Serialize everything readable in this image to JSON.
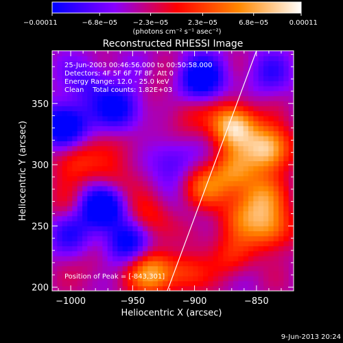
{
  "chart_data": {
    "type": "heatmap",
    "title": "Reconstructed RHESSI Image",
    "xlabel": "Heliocentric X (arcsec)",
    "ylabel": "Heliocentric Y (arcsec)",
    "xlim": [
      -1015,
      -820
    ],
    "ylim": [
      197,
      393
    ],
    "x_ticks": [
      -1000,
      -950,
      -900,
      -850
    ],
    "x_tick_labels": [
      "−1000",
      "−950",
      "−900",
      "−850"
    ],
    "y_ticks": [
      200,
      250,
      300,
      350
    ],
    "y_tick_labels": [
      "200",
      "250",
      "300",
      "350"
    ],
    "colorbar": {
      "min": -0.00011,
      "max": 0.00011,
      "tick_values": [
        -0.00011,
        -6.8e-05,
        -2.3e-05,
        2.3e-05,
        6.8e-05,
        0.00011
      ],
      "tick_labels": [
        "−0.00011",
        "−6.8e−05",
        "−2.3e−05",
        "2.3e−05",
        "6.8e−05",
        "0.00011"
      ],
      "units_label": "(photons cm⁻² s⁻¹ asec⁻²)",
      "colors": [
        "#0000ff",
        "#8800ff",
        "#ff0000",
        "#ff8800",
        "#ffffff"
      ]
    },
    "annotations": {
      "time_range": "25-Jun-2003 00:46:56.000 to 00:50:58.000",
      "detectors": "Detectors: 4F 5F 6F 7F 8F, Att 0",
      "energy_range": "Energy Range: 12.0 - 25.0 keV",
      "clean_counts": "Clean    Total counts: 1.82E+03",
      "peak": "Position of Peak = [-843,301]"
    },
    "limb_line": {
      "x": [
        -922,
        -850
      ],
      "y": [
        197,
        393
      ]
    },
    "peak_position": [
      -843,
      301
    ],
    "blobs": [
      {
        "x": -868,
        "y": 332,
        "v": 1.0
      },
      {
        "x": -840,
        "y": 313,
        "v": 0.95
      },
      {
        "x": -892,
        "y": 282,
        "v": 0.5
      },
      {
        "x": -868,
        "y": 294,
        "v": 0.6
      },
      {
        "x": -846,
        "y": 274,
        "v": 0.55
      },
      {
        "x": -838,
        "y": 248,
        "v": 0.65
      },
      {
        "x": -862,
        "y": 258,
        "v": 0.45
      },
      {
        "x": -900,
        "y": 245,
        "v": 0.4
      },
      {
        "x": -938,
        "y": 258,
        "v": 0.35
      },
      {
        "x": -970,
        "y": 287,
        "v": 0.3
      },
      {
        "x": -998,
        "y": 305,
        "v": 0.45
      },
      {
        "x": -955,
        "y": 315,
        "v": 0.2
      },
      {
        "x": -935,
        "y": 212,
        "v": 0.75
      },
      {
        "x": -910,
        "y": 215,
        "v": 0.5
      },
      {
        "x": -870,
        "y": 224,
        "v": 0.35
      },
      {
        "x": -980,
        "y": 216,
        "v": 0.15
      },
      {
        "x": -1003,
        "y": 266,
        "v": 0.2
      },
      {
        "x": -907,
        "y": 340,
        "v": 0.25
      },
      {
        "x": -930,
        "y": 360,
        "v": 0.1
      },
      {
        "x": -1005,
        "y": 332,
        "v": -0.8
      },
      {
        "x": -960,
        "y": 346,
        "v": -0.6
      },
      {
        "x": -975,
        "y": 266,
        "v": -0.8
      },
      {
        "x": -955,
        "y": 236,
        "v": -0.55
      },
      {
        "x": -1000,
        "y": 245,
        "v": -0.35
      },
      {
        "x": -895,
        "y": 370,
        "v": -0.7
      },
      {
        "x": -918,
        "y": 304,
        "v": -0.35
      },
      {
        "x": -898,
        "y": 254,
        "v": -0.25
      },
      {
        "x": -912,
        "y": 230,
        "v": -0.3
      },
      {
        "x": -840,
        "y": 375,
        "v": -0.3
      },
      {
        "x": -985,
        "y": 368,
        "v": -0.3
      }
    ]
  },
  "footer": {
    "date": "9-Jun-2013 20:24"
  }
}
